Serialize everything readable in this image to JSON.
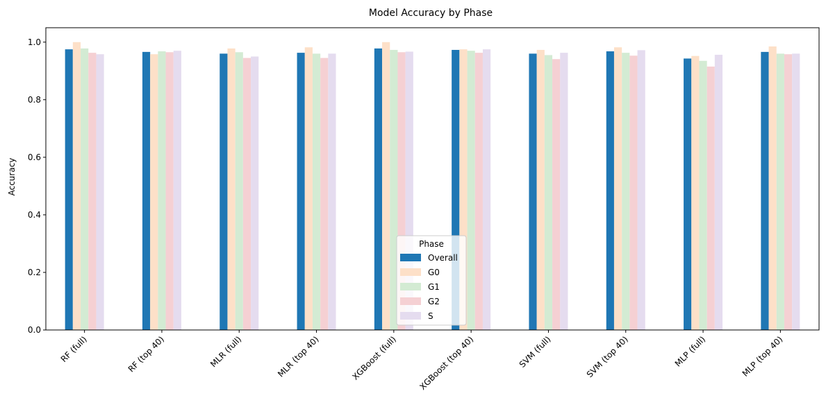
{
  "chart_data": {
    "type": "bar",
    "title": "Model Accuracy by Phase",
    "xlabel": "",
    "ylabel": "Accuracy",
    "ylim": [
      0,
      1.05
    ],
    "yticks": [
      "0.0",
      "0.2",
      "0.4",
      "0.6",
      "0.8",
      "1.0"
    ],
    "grid": false,
    "legend": {
      "title": "Phase",
      "placement": "lower-center"
    },
    "categories": [
      "RF (full)",
      "RF (top 40)",
      "MLR (full)",
      "MLR (top 40)",
      "XGBoost (full)",
      "XGBoost (top 40)",
      "SVM (full)",
      "SVM (top 40)",
      "MLP (full)",
      "MLP (top 40)"
    ],
    "series": [
      {
        "name": "Overall",
        "color": "#1f77b4",
        "values": [
          0.975,
          0.966,
          0.96,
          0.963,
          0.978,
          0.973,
          0.96,
          0.968,
          0.943,
          0.966
        ]
      },
      {
        "name": "G0",
        "color": "#fde0c8",
        "values": [
          1.0,
          0.958,
          0.978,
          0.982,
          1.0,
          0.975,
          0.973,
          0.982,
          0.952,
          0.985
        ]
      },
      {
        "name": "G1",
        "color": "#d3ebd3",
        "values": [
          0.978,
          0.968,
          0.965,
          0.96,
          0.973,
          0.97,
          0.955,
          0.963,
          0.935,
          0.96
        ]
      },
      {
        "name": "G2",
        "color": "#f5d0d3",
        "values": [
          0.963,
          0.965,
          0.945,
          0.945,
          0.965,
          0.963,
          0.941,
          0.953,
          0.915,
          0.958
        ]
      },
      {
        "name": "S",
        "color": "#e5dcef",
        "values": [
          0.958,
          0.97,
          0.95,
          0.96,
          0.967,
          0.975,
          0.963,
          0.972,
          0.956,
          0.96
        ]
      }
    ]
  }
}
